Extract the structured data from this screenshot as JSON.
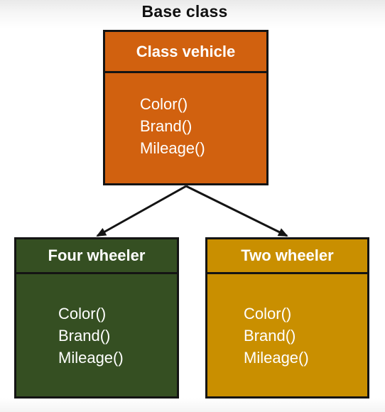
{
  "heading": "Base class",
  "colors": {
    "base_fill": "#d1610f",
    "four_wheeler_fill": "#354f22",
    "two_wheeler_fill": "#c98f00",
    "border": "#141414",
    "arrow": "#141414"
  },
  "base": {
    "title": "Class vehicle",
    "methods": [
      "Color()",
      "Brand()",
      "Mileage()"
    ]
  },
  "children": [
    {
      "title": "Four wheeler",
      "methods": [
        "Color()",
        "Brand()",
        "Mileage()"
      ]
    },
    {
      "title": "Two wheeler",
      "methods": [
        "Color()",
        "Brand()",
        "Mileage()"
      ]
    }
  ]
}
